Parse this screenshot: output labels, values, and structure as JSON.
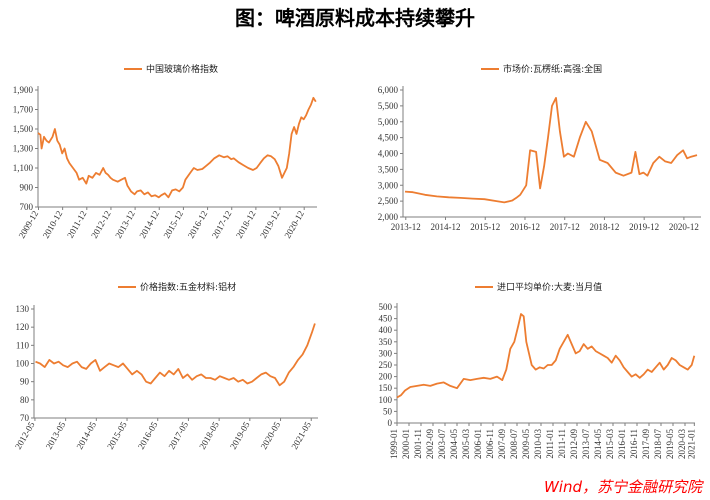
{
  "title": "图：啤酒原料成本持续攀升",
  "source": "Wind，苏宁金融研究院",
  "colors": {
    "line": "#ED7D31",
    "axis": "#7f7f7f",
    "text": "#333333",
    "source": "#ff0000"
  },
  "chart_data": [
    {
      "type": "line",
      "title": "",
      "xlabel": "",
      "ylabel": "",
      "ylim": [
        700,
        1900
      ],
      "yticks": [
        "700",
        "900",
        "1,100",
        "1,300",
        "1,500",
        "1,700",
        "1,900"
      ],
      "xticks": [
        "2009-12",
        "2010-12",
        "2011-12",
        "2012-12",
        "2013-12",
        "2014-12",
        "2015-12",
        "2016-12",
        "2017-12",
        "2018-12",
        "2019-12",
        "2020-12"
      ],
      "series": [
        {
          "name": "中国玻璃价格指数",
          "x": [
            2009.9,
            2010.0,
            2010.05,
            2010.15,
            2010.25,
            2010.35,
            2010.5,
            2010.6,
            2010.7,
            2010.8,
            2010.9,
            2011.0,
            2011.1,
            2011.2,
            2011.35,
            2011.5,
            2011.6,
            2011.75,
            2011.9,
            2012.0,
            2012.15,
            2012.3,
            2012.45,
            2012.6,
            2012.7,
            2012.8,
            2012.9,
            2013.0,
            2013.1,
            2013.2,
            2013.35,
            2013.5,
            2013.6,
            2013.75,
            2013.9,
            2014.0,
            2014.15,
            2014.3,
            2014.45,
            2014.6,
            2014.75,
            2014.9,
            2015.0,
            2015.15,
            2015.3,
            2015.45,
            2015.6,
            2015.75,
            2015.9,
            2016.0,
            2016.2,
            2016.35,
            2016.5,
            2016.7,
            2016.85,
            2017.0,
            2017.2,
            2017.4,
            2017.6,
            2017.75,
            2017.9,
            2018.0,
            2018.2,
            2018.4,
            2018.6,
            2018.8,
            2018.95,
            2019.1,
            2019.25,
            2019.4,
            2019.55,
            2019.7,
            2019.85,
            2020.0,
            2020.1,
            2020.2,
            2020.3,
            2020.4,
            2020.5,
            2020.6,
            2020.7,
            2020.8,
            2020.9,
            2021.0,
            2021.1,
            2021.2,
            2021.3,
            2021.4
          ],
          "y": [
            1460,
            1440,
            1300,
            1420,
            1380,
            1360,
            1420,
            1500,
            1380,
            1340,
            1250,
            1300,
            1200,
            1150,
            1100,
            1050,
            980,
            1000,
            940,
            1020,
            1000,
            1050,
            1030,
            1100,
            1050,
            1030,
            1000,
            980,
            970,
            960,
            980,
            1000,
            920,
            860,
            830,
            860,
            870,
            830,
            850,
            810,
            820,
            800,
            820,
            840,
            800,
            870,
            880,
            860,
            900,
            980,
            1050,
            1100,
            1080,
            1090,
            1120,
            1150,
            1200,
            1230,
            1210,
            1220,
            1190,
            1200,
            1160,
            1130,
            1100,
            1080,
            1100,
            1150,
            1200,
            1230,
            1220,
            1190,
            1120,
            1000,
            1050,
            1100,
            1250,
            1450,
            1520,
            1450,
            1550,
            1620,
            1600,
            1640,
            1700,
            1750,
            1820,
            1780
          ]
        }
      ]
    },
    {
      "type": "line",
      "title": "",
      "xlabel": "",
      "ylabel": "",
      "ylim": [
        2000,
        6000
      ],
      "yticks": [
        "2,000",
        "2,500",
        "3,000",
        "3,500",
        "4,000",
        "4,500",
        "5,000",
        "5,500",
        "6,000"
      ],
      "xticks": [
        "2013-12",
        "2014-12",
        "2015-12",
        "2016-12",
        "2017-12",
        "2018-12",
        "2019-12",
        "2020-12"
      ],
      "series": [
        {
          "name": "市场价:瓦楞纸:高强:全国",
          "x": [
            2013.9,
            2014.1,
            2014.4,
            2014.7,
            2015.0,
            2015.3,
            2015.6,
            2015.9,
            2016.2,
            2016.4,
            2016.6,
            2016.7,
            2016.8,
            2016.95,
            2017.05,
            2017.2,
            2017.3,
            2017.4,
            2017.5,
            2017.6,
            2017.7,
            2017.8,
            2017.9,
            2018.0,
            2018.15,
            2018.3,
            2018.45,
            2018.6,
            2018.8,
            2019.0,
            2019.2,
            2019.4,
            2019.6,
            2019.7,
            2019.8,
            2019.9,
            2020.0,
            2020.15,
            2020.3,
            2020.45,
            2020.6,
            2020.75,
            2020.9,
            2021.0,
            2021.1,
            2021.25
          ],
          "y": [
            2800,
            2780,
            2700,
            2650,
            2620,
            2600,
            2580,
            2560,
            2500,
            2460,
            2520,
            2600,
            2700,
            3000,
            4100,
            4050,
            2900,
            3600,
            4500,
            5500,
            5750,
            4700,
            3900,
            4000,
            3900,
            4500,
            5000,
            4700,
            3800,
            3700,
            3400,
            3300,
            3400,
            4050,
            3350,
            3400,
            3300,
            3700,
            3900,
            3750,
            3700,
            3950,
            4100,
            3850,
            3900,
            3950
          ]
        }
      ]
    },
    {
      "type": "line",
      "title": "",
      "xlabel": "",
      "ylabel": "",
      "ylim": [
        70,
        130
      ],
      "yticks": [
        "70",
        "80",
        "90",
        "100",
        "110",
        "120",
        "130"
      ],
      "xticks": [
        "2012-05",
        "2013-05",
        "2014-05",
        "2015-05",
        "2016-05",
        "2017-05",
        "2018-05",
        "2019-05",
        "2020-05",
        "2021-05"
      ],
      "series": [
        {
          "name": "价格指数:五金材料:铝材",
          "x": [
            2012.35,
            2012.5,
            2012.65,
            2012.8,
            2012.95,
            2013.1,
            2013.25,
            2013.4,
            2013.55,
            2013.7,
            2013.85,
            2014.0,
            2014.15,
            2014.3,
            2014.45,
            2014.6,
            2014.75,
            2014.9,
            2015.05,
            2015.2,
            2015.35,
            2015.5,
            2015.65,
            2015.8,
            2015.95,
            2016.1,
            2016.25,
            2016.4,
            2016.55,
            2016.7,
            2016.85,
            2017.0,
            2017.15,
            2017.3,
            2017.45,
            2017.6,
            2017.75,
            2017.9,
            2018.05,
            2018.2,
            2018.35,
            2018.5,
            2018.65,
            2018.8,
            2018.95,
            2019.1,
            2019.25,
            2019.4,
            2019.55,
            2019.7,
            2019.85,
            2020.0,
            2020.15,
            2020.3,
            2020.45,
            2020.6,
            2020.75,
            2020.9,
            2021.05,
            2021.2,
            2021.35,
            2021.45
          ],
          "y": [
            101,
            100,
            98,
            102,
            100,
            101,
            99,
            98,
            100,
            101,
            98,
            97,
            100,
            102,
            96,
            98,
            100,
            99,
            98,
            100,
            97,
            94,
            96,
            94,
            90,
            89,
            92,
            95,
            93,
            96,
            94,
            97,
            92,
            94,
            91,
            93,
            94,
            92,
            92,
            91,
            93,
            92,
            91,
            92,
            90,
            91,
            89,
            90,
            92,
            94,
            95,
            93,
            92,
            88,
            90,
            95,
            98,
            102,
            105,
            110,
            117,
            122
          ]
        }
      ]
    },
    {
      "type": "line",
      "title": "",
      "xlabel": "",
      "ylabel": "",
      "ylim": [
        0,
        500
      ],
      "yticks": [
        "0",
        "50",
        "100",
        "150",
        "200",
        "250",
        "300",
        "350",
        "400",
        "450",
        "500"
      ],
      "xticks": [
        "1999-01",
        "2000-01",
        "2001-11",
        "2002-09",
        "2003-07",
        "2004-05",
        "2005-03",
        "2006-01",
        "2006-11",
        "2007-09",
        "2008-07",
        "2009-05",
        "2010-03",
        "2011-01",
        "2011-11",
        "2012-09",
        "2013-07",
        "2014-05",
        "2015-03",
        "2016-01",
        "2016-11",
        "2017-09",
        "2018-07",
        "2019-05",
        "2020-03",
        "2021-01"
      ],
      "series": [
        {
          "name": "进口平均单价:大麦:当月值",
          "x": [
            1999.0,
            1999.3,
            1999.6,
            2000.0,
            2000.5,
            2001.0,
            2001.5,
            2002.0,
            2002.5,
            2003.0,
            2003.5,
            2004.0,
            2004.5,
            2005.0,
            2005.5,
            2006.0,
            2006.5,
            2006.9,
            2007.2,
            2007.5,
            2007.8,
            2008.1,
            2008.3,
            2008.5,
            2008.7,
            2008.9,
            2009.1,
            2009.4,
            2009.7,
            2010.0,
            2010.3,
            2010.6,
            2010.9,
            2011.2,
            2011.5,
            2011.8,
            2012.1,
            2012.4,
            2012.7,
            2013.0,
            2013.3,
            2013.6,
            2013.9,
            2014.2,
            2014.5,
            2014.8,
            2015.1,
            2015.4,
            2015.7,
            2016.0,
            2016.3,
            2016.6,
            2016.9,
            2017.2,
            2017.5,
            2017.8,
            2018.1,
            2018.4,
            2018.7,
            2019.0,
            2019.3,
            2019.6,
            2019.9,
            2020.2,
            2020.5,
            2020.8,
            2021.1,
            2021.3
          ],
          "y": [
            110,
            120,
            140,
            155,
            160,
            165,
            160,
            170,
            175,
            160,
            150,
            190,
            185,
            190,
            195,
            190,
            200,
            185,
            230,
            320,
            350,
            420,
            470,
            460,
            350,
            300,
            250,
            230,
            240,
            235,
            250,
            250,
            270,
            320,
            350,
            380,
            340,
            300,
            310,
            340,
            320,
            330,
            310,
            300,
            290,
            280,
            260,
            290,
            270,
            240,
            220,
            200,
            210,
            195,
            210,
            230,
            220,
            240,
            260,
            230,
            250,
            280,
            270,
            250,
            240,
            230,
            250,
            290
          ]
        }
      ]
    }
  ]
}
